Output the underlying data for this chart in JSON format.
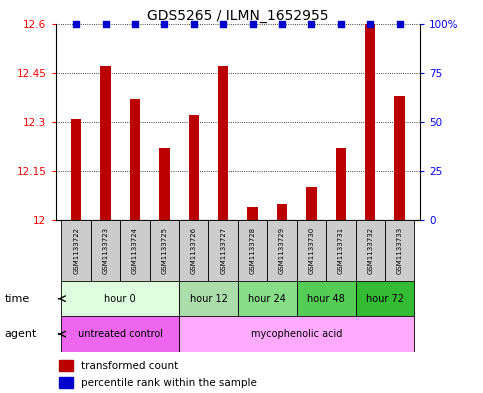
{
  "title": "GDS5265 / ILMN_1652955",
  "samples": [
    "GSM1133722",
    "GSM1133723",
    "GSM1133724",
    "GSM1133725",
    "GSM1133726",
    "GSM1133727",
    "GSM1133728",
    "GSM1133729",
    "GSM1133730",
    "GSM1133731",
    "GSM1133732",
    "GSM1133733"
  ],
  "transformed_counts": [
    12.31,
    12.47,
    12.37,
    12.22,
    12.32,
    12.47,
    12.04,
    12.05,
    12.1,
    12.22,
    12.6,
    12.38
  ],
  "bar_color": "#bb0000",
  "dot_color": "#0000cc",
  "ymin": 12.0,
  "ymax": 12.6,
  "yticks": [
    12.0,
    12.15,
    12.3,
    12.45,
    12.6
  ],
  "ytick_labels": [
    "12",
    "12.15",
    "12.3",
    "12.45",
    "12.6"
  ],
  "right_yticks": [
    0,
    25,
    50,
    75,
    100
  ],
  "right_ytick_labels": [
    "0",
    "25",
    "50",
    "75",
    "100%"
  ],
  "time_groups": [
    {
      "label": "hour 0",
      "start": 0,
      "end": 3
    },
    {
      "label": "hour 12",
      "start": 4,
      "end": 5
    },
    {
      "label": "hour 24",
      "start": 6,
      "end": 7
    },
    {
      "label": "hour 48",
      "start": 8,
      "end": 9
    },
    {
      "label": "hour 72",
      "start": 10,
      "end": 11
    }
  ],
  "time_colors": [
    "#ddffdd",
    "#aaddaa",
    "#88dd88",
    "#55cc55",
    "#33bb33"
  ],
  "agent_groups": [
    {
      "label": "untreated control",
      "start": 0,
      "end": 3
    },
    {
      "label": "mycophenolic acid",
      "start": 4,
      "end": 11
    }
  ],
  "agent_colors": [
    "#ee66ee",
    "#ffaaff"
  ],
  "legend_bar_label": "transformed count",
  "legend_dot_label": "percentile rank within the sample",
  "sample_box_color": "#cccccc",
  "bar_width": 0.35
}
